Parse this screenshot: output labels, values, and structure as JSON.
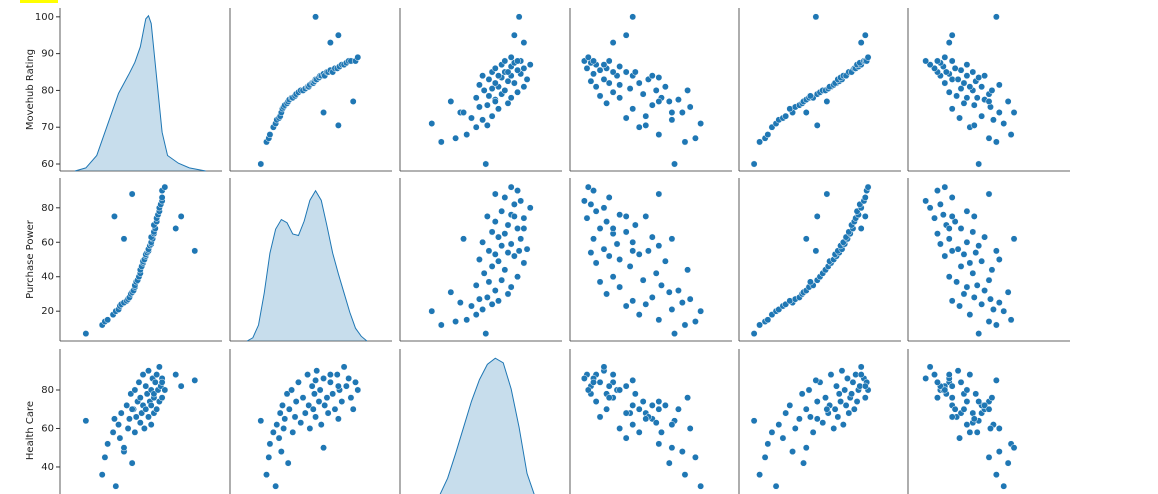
{
  "chart_data": {
    "type": "pairplot",
    "color": "#1f77b4",
    "y_labels": [
      "Movehub Rating",
      "Purchase Power",
      "Health Care"
    ],
    "ylims": [
      [
        58.1,
        102.4
      ],
      [
        2.7,
        97.3
      ],
      [
        16.6,
        101.3
      ]
    ],
    "yticks": [
      [
        60,
        70,
        80,
        90,
        100
      ],
      [
        20,
        40,
        60,
        80
      ],
      [
        40,
        60,
        80
      ]
    ],
    "xlims": [
      [
        50.5,
        110
      ],
      [
        -20,
        122
      ],
      [
        10,
        112
      ],
      [
        -8,
        116
      ],
      [
        1,
        119
      ],
      [
        0,
        110
      ]
    ],
    "rows": [
      [
        60,
        7,
        64,
        72,
        12,
        48
      ],
      [
        66,
        12,
        36,
        80,
        16,
        60
      ],
      [
        67,
        14,
        45,
        88,
        20,
        55
      ],
      [
        68,
        15,
        52,
        60,
        22,
        70
      ],
      [
        70,
        18,
        58,
        45,
        25,
        42
      ],
      [
        71,
        20,
        30,
        92,
        28,
        65
      ],
      [
        72,
        21,
        62,
        70,
        30,
        58
      ],
      [
        72.5,
        23,
        55,
        35,
        33,
        35
      ],
      [
        73,
        24,
        68,
        50,
        35,
        50
      ],
      [
        74,
        25,
        48,
        78,
        40,
        62
      ],
      [
        75,
        26,
        72,
        40,
        38,
        30
      ],
      [
        75.5,
        27,
        60,
        84,
        42,
        56
      ],
      [
        76,
        28,
        65,
        55,
        45,
        45
      ],
      [
        76.5,
        30,
        78,
        20,
        47,
        38
      ],
      [
        77,
        31,
        42,
        68,
        48,
        68
      ],
      [
        77.5,
        32,
        70,
        75,
        50,
        52
      ],
      [
        78,
        34,
        80,
        30,
        52,
        40
      ],
      [
        78,
        35,
        58,
        62,
        55,
        47
      ],
      [
        78.5,
        37,
        66,
        15,
        53,
        33
      ],
      [
        79,
        38,
        74,
        48,
        58,
        55
      ],
      [
        79.5,
        40,
        84,
        25,
        60,
        28
      ],
      [
        80,
        42,
        63,
        58,
        62,
        44
      ],
      [
        80,
        44,
        76,
        82,
        64,
        57
      ],
      [
        80.5,
        46,
        68,
        38,
        66,
        36
      ],
      [
        81,
        48,
        88,
        12,
        68,
        42
      ],
      [
        81,
        49,
        72,
        65,
        67,
        50
      ],
      [
        81.5,
        50,
        60,
        30,
        70,
        62
      ],
      [
        82,
        52,
        82,
        22,
        72,
        25
      ],
      [
        82,
        53,
        70,
        45,
        71,
        38
      ],
      [
        82.5,
        54,
        78,
        8,
        74,
        46
      ],
      [
        83,
        55,
        66,
        52,
        73,
        30
      ],
      [
        83,
        56,
        90,
        18,
        76,
        34
      ],
      [
        83.5,
        58,
        74,
        60,
        75,
        48
      ],
      [
        84,
        59,
        80,
        28,
        78,
        22
      ],
      [
        84,
        60,
        62,
        40,
        77,
        40
      ],
      [
        84.5,
        62,
        86,
        10,
        80,
        28
      ],
      [
        84,
        63,
        72,
        55,
        79,
        52
      ],
      [
        85,
        65,
        76,
        25,
        82,
        20
      ],
      [
        85,
        66,
        68,
        35,
        81,
        44
      ],
      [
        85.5,
        68,
        84,
        15,
        84,
        36
      ],
      [
        85,
        70,
        78,
        42,
        83,
        26
      ],
      [
        86,
        72,
        70,
        20,
        85,
        32
      ],
      [
        86,
        74,
        88,
        5,
        86,
        18
      ],
      [
        86.5,
        76,
        80,
        30,
        88,
        24
      ],
      [
        87,
        78,
        74,
        12,
        87,
        40
      ],
      [
        87,
        80,
        92,
        18,
        90,
        15
      ],
      [
        87.5,
        82,
        82,
        8,
        89,
        22
      ],
      [
        88,
        84,
        86,
        3,
        92,
        12
      ],
      [
        88,
        86,
        76,
        22,
        93,
        30
      ],
      [
        88,
        90,
        84,
        10,
        94,
        20
      ],
      [
        89,
        92,
        80,
        6,
        95,
        25
      ],
      [
        100,
        55,
        85,
        40,
        57,
        60
      ],
      [
        70.5,
        75,
        65,
        50,
        58,
        45
      ],
      [
        95,
        75,
        82,
        35,
        93,
        30
      ],
      [
        93,
        68,
        88,
        25,
        90,
        28
      ],
      [
        74,
        62,
        50,
        70,
        50,
        72
      ],
      [
        77,
        88,
        70,
        60,
        65,
        55
      ]
    ],
    "kde": [
      {
        "x": [
          56,
          60,
          64,
          68,
          72,
          76,
          78,
          80,
          82,
          83,
          84,
          86,
          88,
          90,
          94,
          98,
          104
        ],
        "density": [
          0,
          0.02,
          0.1,
          0.3,
          0.5,
          0.63,
          0.7,
          0.8,
          0.98,
          1.0,
          0.95,
          0.6,
          0.25,
          0.1,
          0.05,
          0.02,
          0
        ],
        "density_ylim": [
          0,
          1.05
        ]
      },
      {
        "x": [
          -5,
          0,
          5,
          10,
          15,
          20,
          25,
          30,
          35,
          40,
          45,
          50,
          55,
          60,
          65,
          70,
          75,
          80,
          85,
          90,
          95,
          100
        ],
        "density": [
          0,
          0.02,
          0.1,
          0.3,
          0.55,
          0.7,
          0.76,
          0.74,
          0.67,
          0.66,
          0.75,
          0.88,
          0.94,
          0.88,
          0.72,
          0.55,
          0.42,
          0.3,
          0.18,
          0.08,
          0.03,
          0
        ],
        "density_ylim": [
          0,
          1.02
        ]
      },
      {
        "x": [
          20,
          30,
          35,
          40,
          45,
          50,
          55,
          60,
          65,
          70,
          75,
          80,
          85,
          90,
          95,
          100,
          105
        ],
        "density": [
          0.005,
          0.04,
          0.11,
          0.22,
          0.38,
          0.55,
          0.72,
          0.86,
          0.96,
          1.0,
          0.97,
          0.8,
          0.55,
          0.25,
          0.1,
          0.03,
          0
        ],
        "density_ylim": [
          0,
          1.06
        ]
      }
    ]
  }
}
